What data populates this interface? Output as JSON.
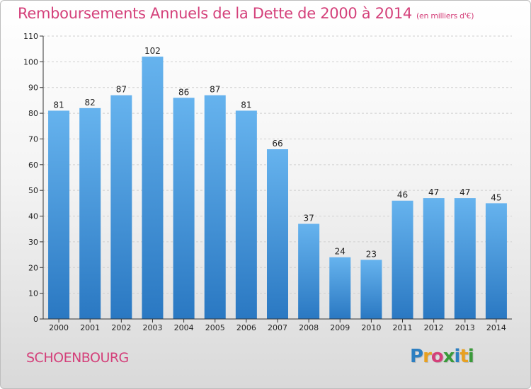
{
  "title": "Remboursements Annuels de la Dette de 2000 à 2014",
  "subtitle": "(en milliers d'€)",
  "commune": "SCHOENBOURG",
  "brand": {
    "name": "Proxiti",
    "letters": [
      "P",
      "r",
      "o",
      "x",
      "i",
      "t",
      "i"
    ],
    "letter_colors": [
      "#2d7fc1",
      "#e8a020",
      "#d4407a",
      "#3a9a3a",
      "#2d7fc1",
      "#e8a020",
      "#3a9a3a"
    ]
  },
  "colors": {
    "bar_light": "#66b3ee",
    "bar_dark": "#2a78c2",
    "title": "#d4407a",
    "grid": "#d0d0d0"
  },
  "chart_data": {
    "type": "bar",
    "categories": [
      "2000",
      "2001",
      "2002",
      "2003",
      "2004",
      "2005",
      "2006",
      "2007",
      "2008",
      "2009",
      "2010",
      "2011",
      "2012",
      "2013",
      "2014"
    ],
    "values": [
      81,
      82,
      87,
      102,
      86,
      87,
      81,
      66,
      37,
      24,
      23,
      46,
      47,
      47,
      45
    ],
    "ylim": [
      0,
      110
    ],
    "yticks": [
      0,
      10,
      20,
      30,
      40,
      50,
      60,
      70,
      80,
      90,
      100,
      110
    ],
    "grid": true,
    "data_labels": true
  }
}
